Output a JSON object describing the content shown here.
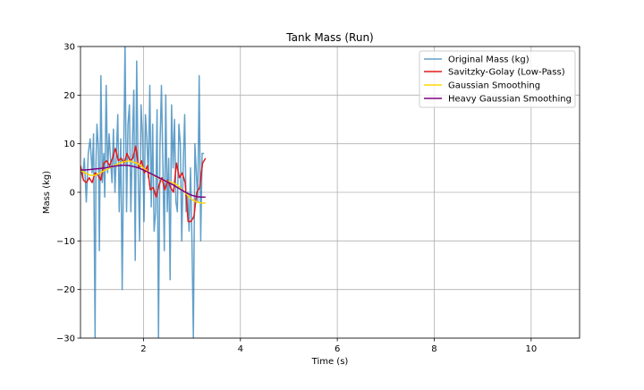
{
  "chart_data": {
    "type": "line",
    "title": "Tank Mass (Run)",
    "xlabel": "Time (s)",
    "ylabel": "Mass (kg)",
    "xlim": [
      0.7,
      11.0
    ],
    "ylim": [
      -30,
      30
    ],
    "xticks": [
      2,
      4,
      6,
      8,
      10
    ],
    "xtick_labels": [
      "2",
      "4",
      "6",
      "8",
      "10"
    ],
    "yticks": [
      -30,
      -20,
      -10,
      0,
      10,
      20,
      30
    ],
    "ytick_labels": [
      "−30",
      "−20",
      "−10",
      "0",
      "10",
      "20",
      "30"
    ],
    "grid": true,
    "legend_position": "top-right",
    "series": [
      {
        "name": "Original Mass (kg)",
        "color": "#1f77b4",
        "opacity": 0.7,
        "x": [
          0.7,
          0.74,
          0.78,
          0.82,
          0.86,
          0.9,
          0.94,
          0.97,
          1.0,
          1.02,
          1.04,
          1.07,
          1.09,
          1.12,
          1.15,
          1.18,
          1.2,
          1.23,
          1.26,
          1.29,
          1.32,
          1.35,
          1.38,
          1.41,
          1.44,
          1.47,
          1.5,
          1.53,
          1.56,
          1.59,
          1.62,
          1.65,
          1.68,
          1.71,
          1.74,
          1.77,
          1.8,
          1.83,
          1.86,
          1.89,
          1.92,
          1.95,
          1.98,
          2.01,
          2.04,
          2.07,
          2.1,
          2.13,
          2.16,
          2.19,
          2.22,
          2.25,
          2.28,
          2.31,
          2.34,
          2.37,
          2.4,
          2.43,
          2.46,
          2.49,
          2.52,
          2.55,
          2.58,
          2.61,
          2.64,
          2.67,
          2.7,
          2.73,
          2.76,
          2.79,
          2.82,
          2.85,
          2.88,
          2.91,
          2.94,
          2.97,
          3.0,
          3.03,
          3.06,
          3.09,
          3.12,
          3.15,
          3.18,
          3.21,
          3.25
        ],
        "y": [
          5,
          3,
          7,
          -2,
          8,
          11,
          4,
          12,
          -30,
          6,
          14,
          9,
          -12,
          24,
          2,
          8,
          -1,
          22,
          4,
          12,
          7,
          2,
          13,
          0,
          8,
          16,
          -4,
          11,
          -20,
          6,
          31,
          -4,
          14,
          18,
          -4,
          10,
          21,
          -14,
          27,
          4,
          -10,
          18,
          12,
          -6,
          16,
          11,
          3,
          22,
          -3,
          14,
          -8,
          -4,
          17,
          -30,
          9,
          22,
          6,
          -12,
          20,
          -4,
          7,
          -18,
          18,
          5,
          15,
          -2,
          -4,
          14,
          10,
          -10,
          6,
          16,
          -4,
          0,
          -8,
          5,
          -10,
          -30,
          10,
          4,
          -2,
          24,
          -10,
          8,
          8
        ]
      },
      {
        "name": "Savitzky-Golay (Low-Pass)",
        "color": "#e41a1c",
        "x": [
          0.7,
          0.76,
          0.82,
          0.88,
          0.94,
          1.0,
          1.06,
          1.12,
          1.18,
          1.24,
          1.3,
          1.36,
          1.42,
          1.48,
          1.54,
          1.6,
          1.66,
          1.72,
          1.78,
          1.84,
          1.9,
          1.96,
          2.02,
          2.08,
          2.14,
          2.2,
          2.26,
          2.32,
          2.38,
          2.44,
          2.5,
          2.56,
          2.62,
          2.68,
          2.74,
          2.8,
          2.86,
          2.92,
          2.98,
          3.04,
          3.1,
          3.16,
          3.22,
          3.28
        ],
        "y": [
          5.5,
          2.5,
          2.0,
          3.0,
          2.0,
          4.0,
          3.5,
          2.5,
          6.0,
          6.5,
          5.5,
          7.0,
          9.0,
          6.5,
          7.0,
          6.0,
          8.0,
          6.5,
          7.0,
          9.5,
          5.0,
          6.5,
          4.0,
          5.5,
          0.5,
          1.0,
          -1.0,
          1.5,
          3.0,
          0.5,
          2.5,
          1.0,
          0.0,
          6.0,
          3.0,
          4.0,
          2.0,
          -6.0,
          -6.0,
          -5.0,
          0.0,
          1.0,
          6.0,
          7.0
        ]
      },
      {
        "name": "Gaussian Smoothing",
        "color": "#ffd700",
        "x": [
          0.7,
          0.8,
          0.9,
          1.0,
          1.1,
          1.2,
          1.3,
          1.4,
          1.5,
          1.6,
          1.7,
          1.8,
          1.9,
          2.0,
          2.1,
          2.2,
          2.3,
          2.4,
          2.5,
          2.6,
          2.7,
          2.8,
          2.9,
          3.0,
          3.1,
          3.2,
          3.28
        ],
        "y": [
          4.5,
          4.0,
          3.5,
          3.5,
          4.0,
          4.5,
          5.0,
          5.5,
          6.0,
          6.3,
          6.5,
          6.2,
          5.8,
          5.0,
          4.2,
          3.5,
          3.0,
          2.5,
          2.2,
          2.0,
          1.5,
          0.5,
          -0.5,
          -1.5,
          -2.0,
          -2.2,
          -2.2
        ]
      },
      {
        "name": "Heavy Gaussian Smoothing",
        "color": "#800080",
        "x": [
          0.7,
          0.8,
          0.9,
          1.0,
          1.1,
          1.2,
          1.3,
          1.4,
          1.5,
          1.6,
          1.7,
          1.8,
          1.9,
          2.0,
          2.1,
          2.2,
          2.3,
          2.4,
          2.5,
          2.6,
          2.7,
          2.8,
          2.9,
          3.0,
          3.1,
          3.2,
          3.28
        ],
        "y": [
          4.6,
          4.6,
          4.7,
          4.8,
          4.9,
          5.0,
          5.2,
          5.4,
          5.5,
          5.6,
          5.5,
          5.3,
          5.0,
          4.6,
          4.1,
          3.6,
          3.1,
          2.6,
          2.1,
          1.6,
          1.0,
          0.4,
          -0.2,
          -0.6,
          -0.9,
          -1.0,
          -1.0
        ]
      }
    ]
  }
}
